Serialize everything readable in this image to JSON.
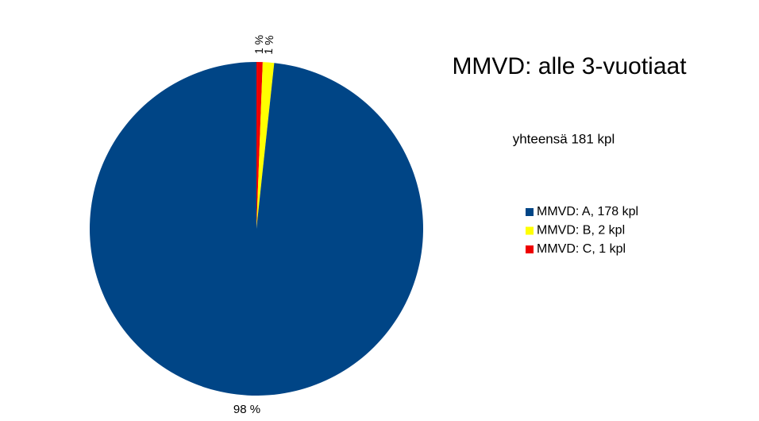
{
  "chart_data": {
    "type": "pie",
    "title": "MMVD: alle 3-vuotiaat",
    "subtitle": "yhteensä 181 kpl",
    "categories": [
      "MMVD: A, 178 kpl",
      "MMVD: B, 2 kpl",
      "MMVD: C, 1 kpl"
    ],
    "values": [
      98.3,
      1.1,
      0.6
    ],
    "value_labels": [
      "98 %",
      "1 %",
      "1 %"
    ],
    "colors": [
      "#004586",
      "#ffff00",
      "#ee0000"
    ],
    "legend": "right"
  }
}
